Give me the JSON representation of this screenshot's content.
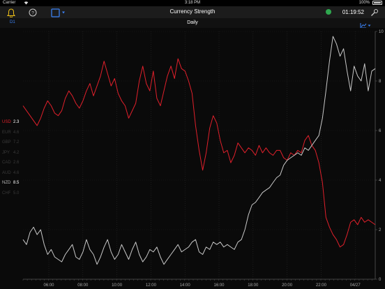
{
  "status": {
    "carrier": "Carrier",
    "time": "3:18 PM",
    "battery": "100%"
  },
  "navbar": {
    "title": "Currency Strength",
    "clock": "01:19:52"
  },
  "subbar": {
    "timeframe": "D1",
    "title": "Daily"
  },
  "legend": [
    {
      "code": "USD",
      "value": "2.3",
      "state": "active-red"
    },
    {
      "code": "EUR",
      "value": "4.6",
      "state": "dim"
    },
    {
      "code": "GBP",
      "value": "7.2",
      "state": "dim"
    },
    {
      "code": "JPY",
      "value": "4.2",
      "state": "dim"
    },
    {
      "code": "CAD",
      "value": "2.6",
      "state": "dim"
    },
    {
      "code": "AUD",
      "value": "4.6",
      "state": "dim"
    },
    {
      "code": "NZD",
      "value": "8.5",
      "state": "active-grey"
    },
    {
      "code": "CHF",
      "value": "5.0",
      "state": "dim"
    }
  ],
  "colors": {
    "usd": "#e0202b",
    "nzd": "#c8c8c8",
    "accent": "#3b82f6",
    "connected": "#2fa84f"
  },
  "chart_data": {
    "type": "line",
    "x_ticks": [
      "06:00",
      "08:00",
      "10:00",
      "12:00",
      "14:00",
      "16:00",
      "18:00",
      "20:00",
      "22:00",
      "04/27"
    ],
    "y_ticks": [
      "0",
      "2",
      "4",
      "6",
      "8",
      "10"
    ],
    "ylim": [
      0,
      10
    ],
    "x_range": [
      0,
      100
    ],
    "series": [
      {
        "name": "USD",
        "color": "#e0202b",
        "points": [
          [
            0,
            7.0
          ],
          [
            1,
            6.8
          ],
          [
            2,
            6.6
          ],
          [
            3,
            6.4
          ],
          [
            4,
            6.2
          ],
          [
            5,
            6.5
          ],
          [
            6,
            6.9
          ],
          [
            7,
            7.2
          ],
          [
            8,
            7.0
          ],
          [
            9,
            6.7
          ],
          [
            10,
            6.6
          ],
          [
            11,
            6.8
          ],
          [
            12,
            7.3
          ],
          [
            13,
            7.6
          ],
          [
            14,
            7.4
          ],
          [
            15,
            7.1
          ],
          [
            16,
            6.9
          ],
          [
            17,
            7.2
          ],
          [
            18,
            7.6
          ],
          [
            19,
            7.9
          ],
          [
            20,
            7.4
          ],
          [
            21,
            7.8
          ],
          [
            22,
            8.2
          ],
          [
            23,
            8.8
          ],
          [
            24,
            8.3
          ],
          [
            25,
            7.8
          ],
          [
            26,
            8.1
          ],
          [
            27,
            7.5
          ],
          [
            28,
            7.2
          ],
          [
            29,
            7.0
          ],
          [
            30,
            6.5
          ],
          [
            31,
            6.8
          ],
          [
            32,
            7.1
          ],
          [
            33,
            8.0
          ],
          [
            34,
            8.6
          ],
          [
            35,
            7.9
          ],
          [
            36,
            7.6
          ],
          [
            37,
            8.4
          ],
          [
            38,
            7.3
          ],
          [
            39,
            7.0
          ],
          [
            40,
            7.6
          ],
          [
            41,
            8.2
          ],
          [
            42,
            8.6
          ],
          [
            43,
            8.1
          ],
          [
            44,
            8.9
          ],
          [
            45,
            8.5
          ],
          [
            46,
            8.4
          ],
          [
            47,
            8.0
          ],
          [
            48,
            7.5
          ],
          [
            49,
            6.2
          ],
          [
            50,
            5.2
          ],
          [
            51,
            4.4
          ],
          [
            52,
            5.1
          ],
          [
            53,
            6.1
          ],
          [
            54,
            6.6
          ],
          [
            55,
            6.3
          ],
          [
            56,
            5.6
          ],
          [
            57,
            5.1
          ],
          [
            58,
            5.2
          ],
          [
            59,
            4.7
          ],
          [
            60,
            5.0
          ],
          [
            61,
            5.5
          ],
          [
            62,
            5.3
          ],
          [
            63,
            5.1
          ],
          [
            64,
            5.3
          ],
          [
            65,
            5.2
          ],
          [
            66,
            5.0
          ],
          [
            67,
            5.4
          ],
          [
            68,
            5.1
          ],
          [
            69,
            5.3
          ],
          [
            70,
            5.1
          ],
          [
            71,
            5.0
          ],
          [
            72,
            5.2
          ],
          [
            73,
            5.2
          ],
          [
            74,
            4.9
          ],
          [
            75,
            4.8
          ],
          [
            76,
            5.1
          ],
          [
            77,
            5.0
          ],
          [
            78,
            5.2
          ],
          [
            79,
            5.1
          ],
          [
            80,
            5.6
          ],
          [
            81,
            5.8
          ],
          [
            82,
            5.4
          ],
          [
            83,
            5.2
          ],
          [
            84,
            4.7
          ],
          [
            85,
            3.9
          ],
          [
            86,
            2.5
          ],
          [
            87,
            2.1
          ],
          [
            88,
            1.8
          ],
          [
            89,
            1.6
          ],
          [
            90,
            1.3
          ],
          [
            91,
            1.4
          ],
          [
            92,
            1.8
          ],
          [
            93,
            2.3
          ],
          [
            94,
            2.4
          ],
          [
            95,
            2.2
          ],
          [
            96,
            2.5
          ],
          [
            97,
            2.3
          ],
          [
            98,
            2.4
          ],
          [
            99,
            2.3
          ],
          [
            100,
            2.2
          ]
        ]
      },
      {
        "name": "NZD",
        "color": "#c8c8c8",
        "points": [
          [
            0,
            1.6
          ],
          [
            1,
            1.4
          ],
          [
            2,
            1.9
          ],
          [
            3,
            2.1
          ],
          [
            4,
            1.8
          ],
          [
            5,
            2.0
          ],
          [
            6,
            1.4
          ],
          [
            7,
            1.0
          ],
          [
            8,
            1.2
          ],
          [
            9,
            0.9
          ],
          [
            10,
            0.8
          ],
          [
            11,
            0.7
          ],
          [
            12,
            1.0
          ],
          [
            13,
            1.2
          ],
          [
            14,
            1.4
          ],
          [
            15,
            0.9
          ],
          [
            16,
            0.8
          ],
          [
            17,
            1.1
          ],
          [
            18,
            1.6
          ],
          [
            19,
            1.2
          ],
          [
            20,
            1.0
          ],
          [
            21,
            0.6
          ],
          [
            22,
            0.9
          ],
          [
            23,
            1.3
          ],
          [
            24,
            1.6
          ],
          [
            25,
            1.1
          ],
          [
            26,
            0.8
          ],
          [
            27,
            1.0
          ],
          [
            28,
            1.4
          ],
          [
            29,
            1.1
          ],
          [
            30,
            0.8
          ],
          [
            31,
            1.2
          ],
          [
            32,
            1.5
          ],
          [
            33,
            1.0
          ],
          [
            34,
            0.7
          ],
          [
            35,
            0.9
          ],
          [
            36,
            1.2
          ],
          [
            37,
            1.1
          ],
          [
            38,
            1.3
          ],
          [
            39,
            0.9
          ],
          [
            40,
            0.6
          ],
          [
            41,
            0.8
          ],
          [
            42,
            1.0
          ],
          [
            43,
            1.2
          ],
          [
            44,
            1.4
          ],
          [
            45,
            1.1
          ],
          [
            46,
            1.2
          ],
          [
            47,
            1.3
          ],
          [
            48,
            1.5
          ],
          [
            49,
            1.6
          ],
          [
            50,
            1.1
          ],
          [
            51,
            1.0
          ],
          [
            52,
            1.3
          ],
          [
            53,
            1.2
          ],
          [
            54,
            1.5
          ],
          [
            55,
            1.4
          ],
          [
            56,
            1.5
          ],
          [
            57,
            1.3
          ],
          [
            58,
            1.4
          ],
          [
            59,
            1.3
          ],
          [
            60,
            1.2
          ],
          [
            61,
            1.5
          ],
          [
            62,
            1.6
          ],
          [
            63,
            2.0
          ],
          [
            64,
            2.6
          ],
          [
            65,
            3.0
          ],
          [
            66,
            3.1
          ],
          [
            67,
            3.3
          ],
          [
            68,
            3.5
          ],
          [
            69,
            3.6
          ],
          [
            70,
            3.7
          ],
          [
            71,
            3.9
          ],
          [
            72,
            4.1
          ],
          [
            73,
            4.2
          ],
          [
            74,
            4.6
          ],
          [
            75,
            4.8
          ],
          [
            76,
            4.9
          ],
          [
            77,
            5.0
          ],
          [
            78,
            5.1
          ],
          [
            79,
            5.0
          ],
          [
            80,
            5.3
          ],
          [
            81,
            5.2
          ],
          [
            82,
            5.4
          ],
          [
            83,
            5.6
          ],
          [
            84,
            5.8
          ],
          [
            85,
            6.5
          ],
          [
            86,
            7.6
          ],
          [
            87,
            8.8
          ],
          [
            88,
            9.8
          ],
          [
            89,
            9.5
          ],
          [
            90,
            9.0
          ],
          [
            91,
            9.3
          ],
          [
            92,
            8.4
          ],
          [
            93,
            7.6
          ],
          [
            94,
            8.6
          ],
          [
            95,
            8.2
          ],
          [
            96,
            8.0
          ],
          [
            97,
            8.7
          ],
          [
            98,
            7.6
          ],
          [
            99,
            8.4
          ],
          [
            100,
            8.5
          ]
        ]
      }
    ]
  }
}
